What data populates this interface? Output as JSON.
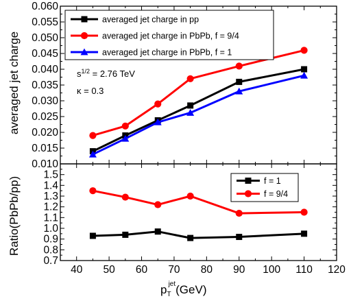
{
  "chart_data": [
    {
      "type": "line",
      "ylabel": "averaged jet charge",
      "xlim": [
        35,
        120
      ],
      "ylim": [
        0.01,
        0.06
      ],
      "y_ticks": [
        "0.010",
        "0.015",
        "0.020",
        "0.025",
        "0.030",
        "0.035",
        "0.040",
        "0.045",
        "0.050",
        "0.055",
        "0.060"
      ],
      "legend_position": "top-left",
      "annotations": {
        "line1_base": "s",
        "line1_sup": "1/2",
        "line1_rest": " = 2.76 TeV",
        "line2": "κ = 0.3"
      },
      "series": [
        {
          "name": "averaged jet charge in pp",
          "color": "#000000",
          "marker": "square",
          "x": [
            45,
            55,
            65,
            75,
            90,
            110
          ],
          "y": [
            0.014,
            0.019,
            0.0238,
            0.0285,
            0.036,
            0.04
          ]
        },
        {
          "name": "averaged jet charge in PbPb, f = 9/4",
          "color": "#ff0000",
          "marker": "circle",
          "x": [
            45,
            55,
            65,
            75,
            90,
            110
          ],
          "y": [
            0.019,
            0.022,
            0.029,
            0.037,
            0.041,
            0.046
          ]
        },
        {
          "name": "averaged jet charge in PbPb, f = 1",
          "color": "#0000ff",
          "marker": "triangle",
          "x": [
            45,
            55,
            65,
            75,
            90,
            110
          ],
          "y": [
            0.013,
            0.018,
            0.0232,
            0.0262,
            0.033,
            0.038
          ]
        }
      ]
    },
    {
      "type": "line",
      "ylabel": "Ratio(PbPb/pp)",
      "xlabel_base": "p",
      "xlabel_sub": "T",
      "xlabel_sup": "jet",
      "xlabel_rest": "(GeV)",
      "xlim": [
        35,
        120
      ],
      "ylim": [
        0.7,
        1.6
      ],
      "x_ticks": [
        "40",
        "50",
        "60",
        "70",
        "80",
        "90",
        "100",
        "110",
        "120"
      ],
      "y_ticks": [
        "0.7",
        "0.8",
        "0.9",
        "1.0",
        "1.1",
        "1.2",
        "1.3",
        "1.4",
        "1.5"
      ],
      "legend_position": "top-right",
      "series": [
        {
          "name": "f = 1",
          "color": "#000000",
          "marker": "square",
          "x": [
            45,
            55,
            65,
            75,
            90,
            110
          ],
          "y": [
            0.93,
            0.94,
            0.97,
            0.91,
            0.92,
            0.95
          ]
        },
        {
          "name": "f = 9/4",
          "color": "#ff0000",
          "marker": "circle",
          "x": [
            45,
            55,
            65,
            75,
            90,
            110
          ],
          "y": [
            1.35,
            1.29,
            1.22,
            1.3,
            1.14,
            1.15
          ]
        }
      ]
    }
  ]
}
